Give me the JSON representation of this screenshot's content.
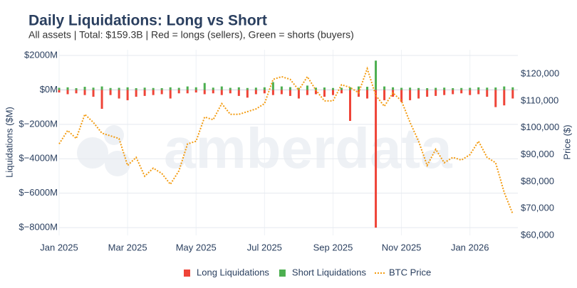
{
  "chart_data": {
    "type": "bar-line",
    "title": "Daily Liquidations: Long vs Short",
    "subtitle": "All assets | Total: $159.3B | Red = longs (sellers), Green = shorts (buyers)",
    "watermark": "amberdata",
    "y_label": "Liquidations ($M)",
    "y2_label": "Price ($)",
    "x": [
      0,
      0.25,
      0.5,
      0.75,
      1,
      1.25,
      1.5,
      1.75,
      2,
      2.25,
      2.5,
      2.75,
      3,
      3.25,
      3.5,
      3.75,
      4,
      4.25,
      4.5,
      4.75,
      5,
      5.25,
      5.5,
      5.75,
      6,
      6.25,
      6.5,
      6.75,
      7,
      7.25,
      7.5,
      7.75,
      8,
      8.25,
      8.5,
      8.75,
      9,
      9.25,
      9.5,
      9.75,
      10,
      10.25,
      10.5,
      10.75,
      11,
      11.25,
      11.5,
      11.75,
      12,
      12.25,
      12.5,
      12.75,
      13,
      13.25
    ],
    "xlim": [
      0,
      13.4
    ],
    "xticks": [
      {
        "value": 0,
        "label": "Jan 2025"
      },
      {
        "value": 2,
        "label": "Mar 2025"
      },
      {
        "value": 4,
        "label": "May 2025"
      },
      {
        "value": 6,
        "label": "Jul 2025"
      },
      {
        "value": 8,
        "label": "Sep 2025"
      },
      {
        "value": 10,
        "label": "Nov 2025"
      },
      {
        "value": 12,
        "label": "Jan 2026"
      }
    ],
    "ylim": [
      -8450,
      2330
    ],
    "yticks": [
      {
        "value": 2000,
        "label": "$2000M"
      },
      {
        "value": 0,
        "label": "$0M"
      },
      {
        "value": -2000,
        "label": "$−2000M"
      },
      {
        "value": -4000,
        "label": "$−4000M"
      },
      {
        "value": -6000,
        "label": "$−6000M"
      },
      {
        "value": -8000,
        "label": "$−8000M"
      }
    ],
    "y2lim": [
      60000,
      129000
    ],
    "y2ticks": [
      {
        "value": 120000,
        "label": "$120,000"
      },
      {
        "value": 110000,
        "label": "$110,000"
      },
      {
        "value": 100000,
        "label": "$100,000"
      },
      {
        "value": 90000,
        "label": "$90,000"
      },
      {
        "value": 80000,
        "label": "$80,000"
      },
      {
        "value": 70000,
        "label": "$70,000"
      },
      {
        "value": 60000,
        "label": "$60,000"
      }
    ],
    "grid": true,
    "legend": "bottom",
    "series": [
      {
        "name": "Long Liquidations",
        "color": "#ef4438",
        "values": [
          -150,
          -250,
          -200,
          -300,
          -400,
          -1100,
          -300,
          -500,
          -600,
          -400,
          -350,
          -300,
          -250,
          -500,
          -200,
          -200,
          -150,
          -250,
          -200,
          -300,
          -200,
          -350,
          -450,
          -250,
          -200,
          -300,
          -250,
          -350,
          -500,
          -300,
          -250,
          -400,
          -300,
          -200,
          -1800,
          -400,
          -500,
          -8000,
          -600,
          -400,
          -700,
          -600,
          -500,
          -400,
          -350,
          -300,
          -250,
          -200,
          -300,
          -250,
          -400,
          -1000,
          -900,
          -500
        ]
      },
      {
        "name": "Short Liquidations",
        "color": "#4caf50",
        "values": [
          120,
          150,
          100,
          180,
          130,
          200,
          110,
          120,
          150,
          100,
          130,
          110,
          100,
          150,
          120,
          200,
          150,
          400,
          130,
          200,
          120,
          150,
          110,
          130,
          150,
          450,
          200,
          160,
          120,
          250,
          130,
          140,
          110,
          120,
          150,
          200,
          180,
          1700,
          200,
          150,
          120,
          130,
          110,
          100,
          120,
          130,
          100,
          110,
          120,
          150,
          130,
          140,
          200,
          150
        ]
      },
      {
        "name": "BTC Price",
        "color": "#f39c12",
        "axis": "y2",
        "values": [
          94000,
          99000,
          96000,
          105000,
          102000,
          98000,
          97000,
          96000,
          86000,
          89000,
          82000,
          85000,
          83000,
          79000,
          84000,
          94000,
          95000,
          104000,
          103000,
          109000,
          105000,
          105000,
          106000,
          107000,
          109000,
          118000,
          119000,
          118000,
          114000,
          119000,
          114000,
          110000,
          110000,
          116000,
          115000,
          113000,
          122000,
          112000,
          108000,
          113000,
          110000,
          102000,
          95000,
          86000,
          92000,
          87000,
          89000,
          88000,
          90000,
          95000,
          89000,
          87000,
          76000,
          68000
        ]
      }
    ]
  }
}
